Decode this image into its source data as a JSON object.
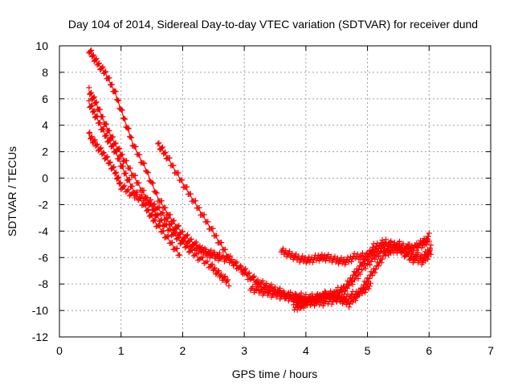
{
  "chart_data": {
    "type": "scatter",
    "title": "Day 104 of 2014, Sidereal Day-to-day VTEC variation (SDTVAR) for receiver dund",
    "xlabel": "GPS time / hours",
    "ylabel": "SDTVAR / TECUs",
    "xlim": [
      0,
      7
    ],
    "ylim": [
      -12,
      10
    ],
    "xticks": [
      0,
      1,
      2,
      3,
      4,
      5,
      6,
      7
    ],
    "yticks": [
      -12,
      -10,
      -8,
      -6,
      -4,
      -2,
      0,
      2,
      4,
      6,
      8,
      10
    ],
    "grid": true,
    "legend": "none",
    "marker": "plus",
    "color": "#ff0000",
    "series": [
      {
        "name": "track-1",
        "x": [
          0.48,
          0.6,
          0.75,
          0.9,
          1.05,
          1.2,
          1.4,
          1.6,
          1.8,
          2.0,
          2.2,
          2.4,
          2.6
        ],
        "y": [
          9.7,
          8.8,
          7.9,
          6.5,
          4.5,
          2.5,
          0.7,
          -1.5,
          -3.0,
          -4.2,
          -5.0,
          -5.7,
          -6.0
        ]
      },
      {
        "name": "track-2",
        "x": [
          0.48,
          0.6,
          0.75,
          0.9,
          1.05,
          1.25,
          1.45,
          1.6,
          1.8,
          2.0,
          2.2,
          2.45,
          2.6,
          2.75
        ],
        "y": [
          6.6,
          5.6,
          4.0,
          2.6,
          1.4,
          -0.2,
          -1.8,
          -3.0,
          -4.0,
          -4.9,
          -5.8,
          -6.6,
          -7.3,
          -7.9
        ]
      },
      {
        "name": "track-3",
        "x": [
          0.48,
          0.6,
          0.75,
          0.9,
          1.05,
          1.2,
          1.4,
          1.55,
          1.75,
          1.95
        ],
        "y": [
          5.7,
          4.6,
          3.2,
          2.1,
          0.5,
          -0.9,
          -2.2,
          -3.3,
          -4.5,
          -5.8
        ]
      },
      {
        "name": "track-4",
        "x": [
          0.48,
          0.6,
          0.75,
          0.9,
          1.0,
          1.2,
          1.4,
          1.6,
          1.8,
          2.0,
          2.2,
          2.4,
          2.6,
          2.8,
          3.0,
          3.2,
          3.4,
          3.6,
          3.8,
          3.95
        ],
        "y": [
          3.3,
          2.5,
          1.6,
          0.5,
          -0.6,
          -1.3,
          -1.6,
          -2.3,
          -3.5,
          -4.6,
          -5.3,
          -5.6,
          -5.9,
          -6.3,
          -7.0,
          -7.8,
          -8.2,
          -8.6,
          -9.1,
          -9.8
        ]
      },
      {
        "name": "track-5",
        "x": [
          1.6,
          1.75,
          1.95,
          2.15,
          2.35,
          2.55,
          2.75,
          3.0,
          3.3,
          3.6,
          3.85,
          4.1,
          4.4,
          4.7,
          5.0,
          5.2,
          5.5,
          5.8,
          6.0
        ],
        "y": [
          2.6,
          1.6,
          0.0,
          -1.5,
          -3.0,
          -4.5,
          -6.0,
          -7.2,
          -8.3,
          -8.8,
          -8.9,
          -9.0,
          -8.7,
          -8.2,
          -6.5,
          -5.6,
          -5.3,
          -5.2,
          -4.4
        ]
      },
      {
        "name": "track-6",
        "x": [
          3.6,
          3.75,
          3.9,
          4.05,
          4.2,
          4.35,
          4.5,
          4.65,
          4.8,
          5.0,
          5.15,
          5.3,
          5.5,
          5.7,
          5.9,
          6.0
        ],
        "y": [
          -5.5,
          -5.8,
          -6.1,
          -6.2,
          -6.0,
          -6.0,
          -6.2,
          -6.3,
          -5.9,
          -5.9,
          -5.4,
          -5.1,
          -5.0,
          -5.3,
          -5.0,
          -4.6
        ]
      },
      {
        "name": "track-7",
        "x": [
          3.1,
          3.3,
          3.5,
          3.7,
          3.9,
          4.1,
          4.3,
          4.5,
          4.7,
          4.9,
          5.05
        ],
        "y": [
          -8.3,
          -8.6,
          -8.8,
          -9.0,
          -9.2,
          -9.4,
          -9.4,
          -9.2,
          -8.9,
          -8.6,
          -8.1
        ]
      },
      {
        "name": "track-8",
        "x": [
          3.8,
          3.95,
          4.1,
          4.3,
          4.5,
          4.65,
          4.8,
          4.95,
          5.1,
          5.3,
          5.5,
          5.7,
          5.9,
          6.03
        ],
        "y": [
          -8.9,
          -9.3,
          -9.2,
          -8.9,
          -8.8,
          -8.2,
          -7.2,
          -6.2,
          -5.2,
          -4.8,
          -5.3,
          -6.1,
          -6.3,
          -5.6
        ]
      },
      {
        "name": "track-9",
        "x": [
          3.8,
          3.95,
          4.1,
          4.25,
          4.4,
          4.55,
          4.7,
          4.85,
          5.0,
          5.15,
          5.3,
          5.5,
          5.7,
          5.9,
          6.03
        ],
        "y": [
          -9.8,
          -9.6,
          -9.3,
          -9.0,
          -8.9,
          -9.1,
          -9.5,
          -8.8,
          -7.7,
          -6.7,
          -5.6,
          -5.4,
          -5.7,
          -6.0,
          -5.3
        ]
      }
    ]
  }
}
